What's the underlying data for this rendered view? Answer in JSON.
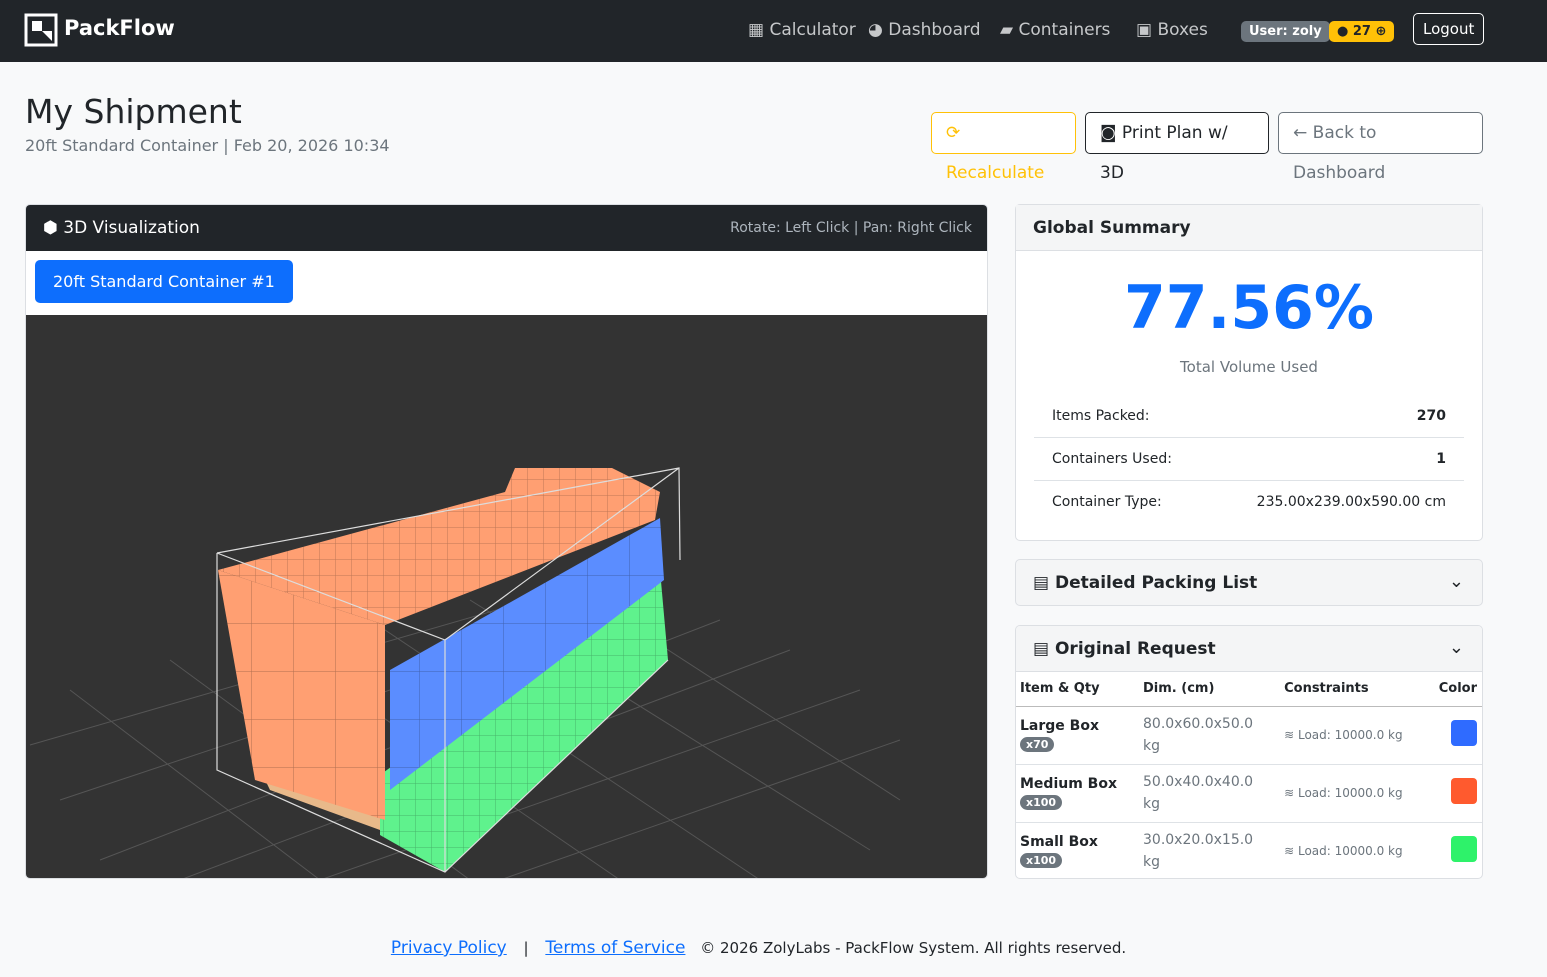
{
  "navbar": {
    "brand": "PackFlow",
    "links": [
      "Calculator",
      "Dashboard",
      "Containers",
      "Boxes"
    ],
    "user": "User: zoly",
    "credits": "27",
    "logout": "Logout"
  },
  "header": {
    "title": "My Shipment",
    "subtitle": "20ft Standard Container | Feb 20, 2026 10:34",
    "buttons": [
      "Recalculate",
      "Print Plan w/ 3D",
      "Back to Dashboard"
    ]
  },
  "visualization": {
    "title": "3D Visualization",
    "hint": "Rotate: Left Click | Pan: Right Click",
    "tab": "20ft Standard Container #1"
  },
  "summary": {
    "title": "Global Summary",
    "percent": "77.56%",
    "percent_label": "Total Volume Used",
    "rows": [
      [
        "Items Packed:",
        "270"
      ],
      [
        "Containers Used:",
        "1"
      ],
      [
        "Container Type:",
        "235.00x239.00x590.00 cm"
      ]
    ]
  },
  "packing_list": {
    "title": "Detailed Packing List"
  },
  "request": {
    "title": "Original Request",
    "columns": [
      "Item & Qty",
      "Dim. (cm)",
      "Constraints",
      "Color"
    ],
    "rows": [
      {
        "name": "Large Box",
        "qty": "x70",
        "dims": "80.0x60.0x50.0 kg",
        "constraint": "Load: 10000.0 kg",
        "color": "#2f6bff"
      },
      {
        "name": "Medium Box",
        "qty": "x100",
        "dims": "50.0x40.0x40.0 kg",
        "constraint": "Load: 10000.0 kg",
        "color": "#ff5a2e"
      },
      {
        "name": "Small Box",
        "qty": "x100",
        "dims": "30.0x20.0x15.0 kg",
        "constraint": "Load: 10000.0 kg",
        "color": "#2ef26a"
      }
    ]
  },
  "footer": {
    "privacy": "Privacy Policy",
    "separator": "|",
    "terms": "Terms of Service",
    "copyright": "© 2026 ZolyLabs - PackFlow System. All rights reserved."
  }
}
